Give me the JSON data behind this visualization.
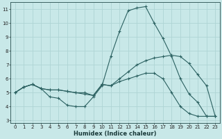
{
  "xlabel": "Humidex (Indice chaleur)",
  "ylabel": "",
  "background_color": "#c8e8e8",
  "grid_color": "#aed4d4",
  "line_color": "#2a6060",
  "xlim": [
    -0.5,
    23.5
  ],
  "ylim": [
    2.8,
    11.5
  ],
  "yticks": [
    3,
    4,
    5,
    6,
    7,
    8,
    9,
    10,
    11
  ],
  "xticks": [
    0,
    1,
    2,
    3,
    4,
    5,
    6,
    7,
    8,
    9,
    10,
    11,
    12,
    13,
    14,
    15,
    16,
    17,
    18,
    19,
    20,
    21,
    22,
    23
  ],
  "line1_x": [
    0,
    1,
    2,
    3,
    4,
    5,
    6,
    7,
    8,
    9,
    10,
    11,
    12,
    13,
    14,
    15,
    16,
    17,
    18,
    19,
    20,
    21,
    22,
    23
  ],
  "line1_y": [
    5.0,
    5.4,
    5.6,
    5.3,
    4.7,
    4.6,
    4.1,
    4.0,
    4.0,
    4.7,
    5.5,
    7.6,
    9.4,
    10.9,
    11.1,
    11.2,
    10.0,
    8.9,
    7.6,
    6.0,
    4.9,
    4.3,
    3.3,
    3.3
  ],
  "line2_x": [
    0,
    1,
    2,
    3,
    4,
    5,
    6,
    7,
    8,
    9,
    10,
    11,
    12,
    13,
    14,
    15,
    16,
    17,
    18,
    19,
    20,
    21,
    22,
    23
  ],
  "line2_y": [
    5.0,
    5.4,
    5.6,
    5.3,
    5.2,
    5.2,
    5.1,
    5.0,
    5.0,
    4.8,
    5.6,
    5.5,
    6.0,
    6.5,
    7.0,
    7.3,
    7.5,
    7.6,
    7.7,
    7.6,
    7.1,
    6.3,
    5.5,
    3.3
  ],
  "line3_x": [
    0,
    1,
    2,
    3,
    4,
    5,
    6,
    7,
    8,
    9,
    10,
    11,
    12,
    13,
    14,
    15,
    16,
    17,
    18,
    19,
    20,
    21,
    22,
    23
  ],
  "line3_y": [
    5.0,
    5.4,
    5.6,
    5.3,
    5.2,
    5.2,
    5.1,
    5.0,
    4.9,
    4.8,
    5.6,
    5.5,
    5.8,
    6.0,
    6.2,
    6.4,
    6.4,
    6.0,
    5.0,
    4.0,
    3.5,
    3.3,
    3.3,
    3.3
  ],
  "tick_fontsize": 5.0,
  "xlabel_fontsize": 6.0
}
